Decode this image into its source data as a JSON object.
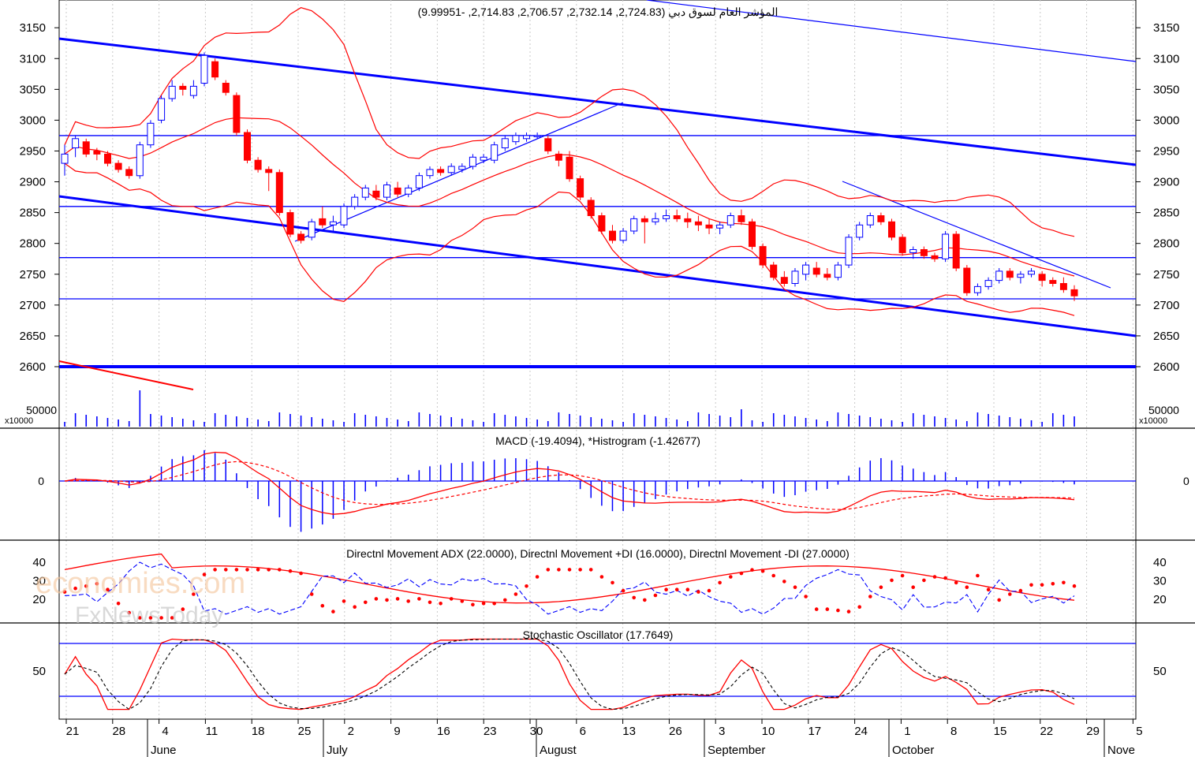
{
  "main_title": "المؤشر العام لسوق دبي (2,724.83, 2,732.14, 2,706.57, 2,714.83, -9.99951)",
  "volume_multiplier_label": "x10000",
  "volume_tick": "50000",
  "macd_title": "MACD (-19.4094), *Histrogram (-1.42677)",
  "macd_zero_label": "0",
  "adx_title": "Directnl Movement ADX (22.0000), Directnl Movement +DI (16.0000), Directnl Movement -DI (27.0000)",
  "stoch_title": "Stochastic Oscillator (17.7649)",
  "watermark_1": "economies.com",
  "watermark_2": "FxNewsToday",
  "colors": {
    "up": "#0000ff",
    "down": "#ff0000",
    "band": "#ff0000",
    "line": "#0000ff",
    "axis": "#000000"
  },
  "chart_data": [
    {
      "type": "candlestick",
      "title": "المؤشر العام لسوق دبي (2,724.83, 2,732.14, 2,706.57, 2,714.83, -9.99951)",
      "y_ticks": [
        2600,
        2650,
        2700,
        2750,
        2800,
        2850,
        2900,
        2950,
        3000,
        3050,
        3100,
        3150
      ],
      "x_ticks_days": [
        "21",
        "28",
        "4",
        "11",
        "18",
        "25",
        "2",
        "9",
        "16",
        "23",
        "30",
        "6",
        "13",
        "26",
        "3",
        "10",
        "17",
        "24",
        "1",
        "8",
        "15",
        "22",
        "29",
        "5"
      ],
      "x_months": [
        "June",
        "July",
        "August",
        "September",
        "October",
        "Nove"
      ],
      "ohlc_approx": [
        [
          2930,
          2960,
          2910,
          2945
        ],
        [
          2955,
          2975,
          2940,
          2970
        ],
        [
          2965,
          2970,
          2940,
          2945
        ],
        [
          2950,
          2955,
          2935,
          2945
        ],
        [
          2945,
          2950,
          2925,
          2930
        ],
        [
          2930,
          2935,
          2915,
          2920
        ],
        [
          2920,
          2925,
          2905,
          2910
        ],
        [
          2910,
          2965,
          2905,
          2960
        ],
        [
          2960,
          3000,
          2955,
          2995
        ],
        [
          3000,
          3040,
          2995,
          3035
        ],
        [
          3035,
          3065,
          3030,
          3055
        ],
        [
          3055,
          3060,
          3040,
          3050
        ],
        [
          3040,
          3065,
          3035,
          3055
        ],
        [
          3060,
          3110,
          3055,
          3105
        ],
        [
          3095,
          3100,
          3065,
          3070
        ],
        [
          3060,
          3065,
          3040,
          3045
        ],
        [
          3040,
          3045,
          2975,
          2980
        ],
        [
          2980,
          2985,
          2930,
          2935
        ],
        [
          2935,
          2940,
          2915,
          2920
        ],
        [
          2920,
          2925,
          2885,
          2915
        ],
        [
          2915,
          2920,
          2845,
          2850
        ],
        [
          2850,
          2855,
          2810,
          2815
        ],
        [
          2815,
          2820,
          2800,
          2805
        ],
        [
          2810,
          2840,
          2805,
          2835
        ],
        [
          2840,
          2860,
          2825,
          2830
        ],
        [
          2830,
          2845,
          2820,
          2835
        ],
        [
          2830,
          2865,
          2825,
          2860
        ],
        [
          2860,
          2880,
          2855,
          2875
        ],
        [
          2875,
          2895,
          2870,
          2890
        ],
        [
          2885,
          2895,
          2870,
          2875
        ],
        [
          2875,
          2900,
          2870,
          2895
        ],
        [
          2890,
          2900,
          2875,
          2880
        ],
        [
          2880,
          2895,
          2875,
          2890
        ],
        [
          2890,
          2915,
          2885,
          2910
        ],
        [
          2910,
          2925,
          2905,
          2920
        ],
        [
          2920,
          2925,
          2910,
          2915
        ],
        [
          2915,
          2930,
          2910,
          2925
        ],
        [
          2920,
          2930,
          2915,
          2925
        ],
        [
          2925,
          2945,
          2920,
          2940
        ],
        [
          2935,
          2945,
          2930,
          2940
        ],
        [
          2935,
          2965,
          2930,
          2960
        ],
        [
          2955,
          2975,
          2950,
          2970
        ],
        [
          2965,
          2980,
          2960,
          2975
        ],
        [
          2970,
          2980,
          2965,
          2975
        ],
        [
          2975,
          2980,
          2970,
          2975
        ],
        [
          2970,
          2975,
          2945,
          2950
        ],
        [
          2945,
          2950,
          2925,
          2935
        ],
        [
          2940,
          2950,
          2900,
          2905
        ],
        [
          2905,
          2910,
          2870,
          2875
        ],
        [
          2870,
          2875,
          2840,
          2845
        ],
        [
          2845,
          2850,
          2815,
          2820
        ],
        [
          2820,
          2830,
          2800,
          2805
        ],
        [
          2805,
          2825,
          2800,
          2820
        ],
        [
          2820,
          2845,
          2815,
          2840
        ],
        [
          2840,
          2845,
          2800,
          2835
        ],
        [
          2835,
          2850,
          2830,
          2840
        ],
        [
          2840,
          2855,
          2835,
          2845
        ],
        [
          2845,
          2855,
          2835,
          2840
        ],
        [
          2840,
          2850,
          2825,
          2835
        ],
        [
          2835,
          2845,
          2820,
          2830
        ],
        [
          2830,
          2840,
          2815,
          2825
        ],
        [
          2825,
          2835,
          2815,
          2830
        ],
        [
          2830,
          2850,
          2825,
          2845
        ],
        [
          2845,
          2855,
          2830,
          2835
        ],
        [
          2835,
          2840,
          2790,
          2795
        ],
        [
          2795,
          2800,
          2760,
          2765
        ],
        [
          2765,
          2770,
          2740,
          2745
        ],
        [
          2745,
          2755,
          2730,
          2735
        ],
        [
          2735,
          2760,
          2730,
          2755
        ],
        [
          2750,
          2770,
          2740,
          2765
        ],
        [
          2760,
          2770,
          2745,
          2750
        ],
        [
          2750,
          2760,
          2740,
          2745
        ],
        [
          2745,
          2770,
          2740,
          2765
        ],
        [
          2765,
          2815,
          2760,
          2810
        ],
        [
          2810,
          2835,
          2805,
          2830
        ],
        [
          2830,
          2850,
          2825,
          2845
        ],
        [
          2845,
          2850,
          2830,
          2835
        ],
        [
          2835,
          2840,
          2805,
          2810
        ],
        [
          2810,
          2815,
          2780,
          2785
        ],
        [
          2785,
          2795,
          2775,
          2790
        ],
        [
          2790,
          2795,
          2775,
          2780
        ],
        [
          2780,
          2785,
          2770,
          2775
        ],
        [
          2775,
          2820,
          2770,
          2815
        ],
        [
          2815,
          2820,
          2755,
          2760
        ],
        [
          2760,
          2765,
          2715,
          2720
        ],
        [
          2720,
          2735,
          2715,
          2730
        ],
        [
          2730,
          2745,
          2725,
          2740
        ],
        [
          2740,
          2760,
          2735,
          2755
        ],
        [
          2755,
          2760,
          2740,
          2745
        ],
        [
          2745,
          2755,
          2735,
          2750
        ],
        [
          2750,
          2760,
          2745,
          2755
        ],
        [
          2750,
          2755,
          2730,
          2740
        ],
        [
          2740,
          2745,
          2730,
          2735
        ],
        [
          2735,
          2745,
          2720,
          2725
        ],
        [
          2724.83,
          2732.14,
          2706.57,
          2714.83
        ]
      ]
    },
    {
      "type": "bar",
      "title": "volume",
      "y_ticks": [
        50000
      ],
      "unit": "x10000"
    },
    {
      "type": "line",
      "title": "MACD (-19.4094), *Histrogram (-1.42677)",
      "y_ticks": [
        0
      ]
    },
    {
      "type": "line",
      "title": "Directnl Movement ADX (22.0000), Directnl Movement +DI (16.0000), Directnl Movement -DI (27.0000)",
      "y_ticks": [
        20,
        30,
        40
      ]
    },
    {
      "type": "line",
      "title": "Stochastic Oscillator (17.7649)",
      "y_ticks": [
        50
      ]
    }
  ]
}
